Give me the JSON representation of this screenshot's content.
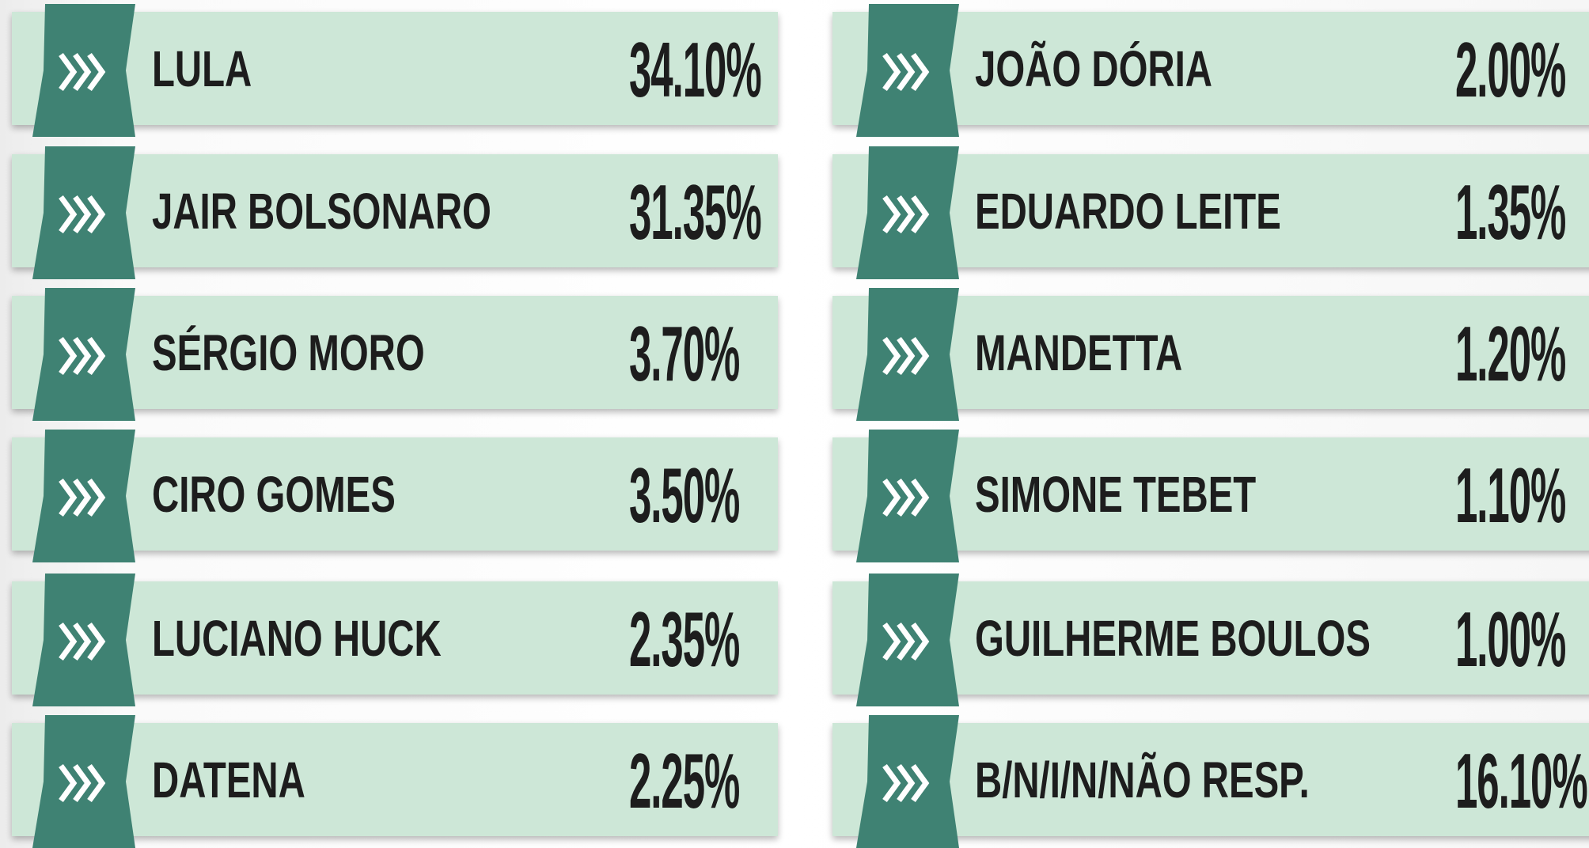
{
  "columns": [
    {
      "items": [
        {
          "name": "LULA",
          "share": "34.10%"
        },
        {
          "name": "JAIR BOLSONARO",
          "share": "31.35%"
        },
        {
          "name": "SÉRGIO MORO",
          "share": "3.70%"
        },
        {
          "name": "CIRO GOMES",
          "share": "3.50%"
        },
        {
          "name": "LUCIANO HUCK",
          "share": "2.35%"
        },
        {
          "name": "DATENA",
          "share": "2.25%"
        }
      ]
    },
    {
      "items": [
        {
          "name": "JOÃO DÓRIA",
          "share": "2.00%"
        },
        {
          "name": "EDUARDO LEITE",
          "share": "1.35%"
        },
        {
          "name": "MANDETTA",
          "share": "1.20%"
        },
        {
          "name": "SIMONE TEBET",
          "share": "1.10%"
        },
        {
          "name": "GUILHERME BOULOS",
          "share": "1.00%"
        },
        {
          "name": "B/N/I/N/NÃO RESP.",
          "share": "16.10%"
        }
      ]
    }
  ]
}
